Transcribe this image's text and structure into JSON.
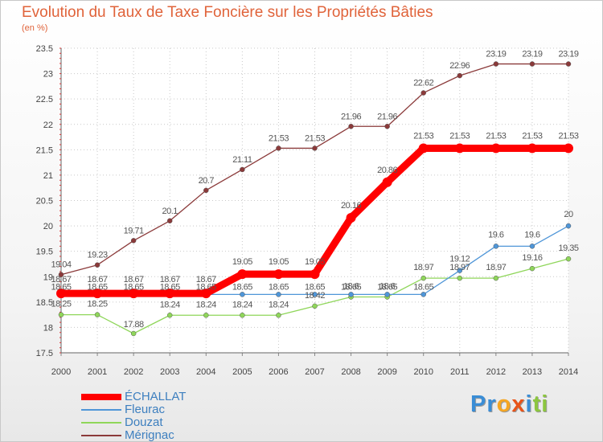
{
  "header": {
    "title": "Evolution du Taux de Taxe Foncière sur les Propriétés Bâties",
    "subtitle": "(en %)"
  },
  "chart_data": {
    "type": "line",
    "x": [
      "2000",
      "2001",
      "2002",
      "2003",
      "2004",
      "2005",
      "2006",
      "2007",
      "2008",
      "2009",
      "2010",
      "2011",
      "2012",
      "2013",
      "2014"
    ],
    "ylim": [
      17.5,
      23.5
    ],
    "yticks": [
      "17.5",
      "18",
      "18.5",
      "19",
      "19.5",
      "20",
      "20.5",
      "21",
      "21.5",
      "22",
      "22.5",
      "23",
      "23.5"
    ],
    "grid": "dotted",
    "legend_position": "bottom-left",
    "series": [
      {
        "name": "ÉCHALLAT",
        "color": "#ff0000",
        "values": [
          18.67,
          18.67,
          18.67,
          18.67,
          18.67,
          19.05,
          19.05,
          19.05,
          20.16,
          20.86,
          21.53,
          21.53,
          21.53,
          21.53,
          21.53
        ],
        "labels": [
          "18.67",
          "18.67",
          "18.67",
          "18.67",
          "18.67",
          "19.05",
          "19.05",
          "19.05",
          "20.16",
          "20.86",
          "21.53",
          "21.53",
          "21.53",
          "21.53",
          "21.53"
        ]
      },
      {
        "name": "Fleurac",
        "color": "#4f96d8",
        "values": [
          18.65,
          18.65,
          18.65,
          18.65,
          18.65,
          18.65,
          18.65,
          18.65,
          18.65,
          18.65,
          18.65,
          19.12,
          19.6,
          19.6,
          20
        ],
        "labels": [
          "18.65",
          "18.65",
          "18.65",
          "18.65",
          "18.65",
          "18.65",
          "18.65",
          "18.65",
          "18.65",
          "18.65",
          "18.65",
          "19.12",
          "19.6",
          "19.6",
          "20"
        ]
      },
      {
        "name": "Douzat",
        "color": "#8fd65a",
        "values": [
          18.25,
          18.25,
          17.88,
          18.24,
          18.24,
          18.24,
          18.24,
          18.42,
          18.6,
          18.6,
          18.97,
          18.97,
          18.97,
          19.16,
          19.35
        ],
        "labels": [
          "18.25",
          "18.25",
          "17.88",
          "18.24",
          "18.24",
          "18.24",
          "18.24",
          "18.42",
          "18.6",
          "18.6",
          "18.97",
          "18.97",
          "18.97",
          "19.16",
          "19.35"
        ]
      },
      {
        "name": "Mérignac",
        "color": "#8b3a3a",
        "values": [
          19.04,
          19.23,
          19.71,
          20.1,
          20.7,
          21.11,
          21.53,
          21.53,
          21.96,
          21.96,
          22.62,
          22.96,
          23.19,
          23.19,
          23.19
        ],
        "labels": [
          "19.04",
          "19.23",
          "19.71",
          "20.1",
          "20.7",
          "21.11",
          "21.53",
          "21.53",
          "21.96",
          "21.96",
          "22.62",
          "22.96",
          "23.19",
          "23.19",
          "23.19"
        ]
      }
    ]
  },
  "logo": {
    "letters": [
      "P",
      "r",
      "o",
      "x",
      "i",
      "t",
      "i"
    ],
    "colors": [
      "#3a8dd6",
      "#3a8dd6",
      "#f5a623",
      "#e8541a",
      "#3a8dd6",
      "#8cc63f",
      "#8cc63f"
    ]
  }
}
